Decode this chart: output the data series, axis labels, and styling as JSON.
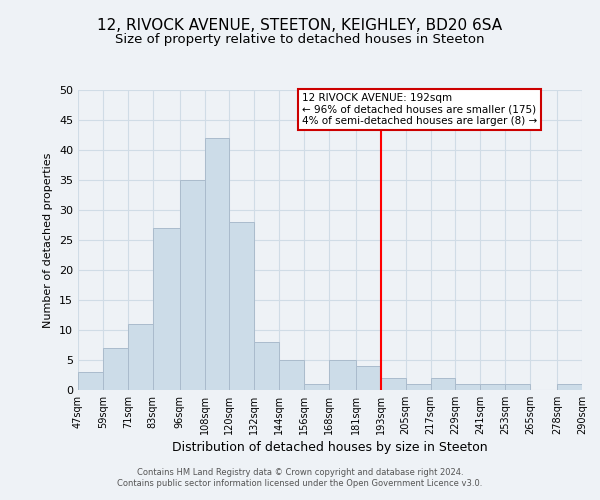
{
  "title": "12, RIVOCK AVENUE, STEETON, KEIGHLEY, BD20 6SA",
  "subtitle": "Size of property relative to detached houses in Steeton",
  "xlabel": "Distribution of detached houses by size in Steeton",
  "ylabel": "Number of detached properties",
  "bar_edges": [
    47,
    59,
    71,
    83,
    96,
    108,
    120,
    132,
    144,
    156,
    168,
    181,
    193,
    205,
    217,
    229,
    241,
    253,
    265,
    278,
    290
  ],
  "bar_heights": [
    3,
    7,
    11,
    27,
    35,
    42,
    28,
    8,
    5,
    1,
    5,
    4,
    2,
    1,
    2,
    1,
    1,
    1,
    0,
    1
  ],
  "tick_labels": [
    "47sqm",
    "59sqm",
    "71sqm",
    "83sqm",
    "96sqm",
    "108sqm",
    "120sqm",
    "132sqm",
    "144sqm",
    "156sqm",
    "168sqm",
    "181sqm",
    "193sqm",
    "205sqm",
    "217sqm",
    "229sqm",
    "241sqm",
    "253sqm",
    "265sqm",
    "278sqm",
    "290sqm"
  ],
  "bar_color": "#ccdce8",
  "bar_edgecolor": "#aabbcc",
  "grid_color": "#d0dce6",
  "red_line_x": 193,
  "ylim": [
    0,
    50
  ],
  "yticks": [
    0,
    5,
    10,
    15,
    20,
    25,
    30,
    35,
    40,
    45,
    50
  ],
  "legend_title": "12 RIVOCK AVENUE: 192sqm",
  "legend_line1": "← 96% of detached houses are smaller (175)",
  "legend_line2": "4% of semi-detached houses are larger (8) →",
  "legend_box_edgecolor": "#cc0000",
  "footer_line1": "Contains HM Land Registry data © Crown copyright and database right 2024.",
  "footer_line2": "Contains public sector information licensed under the Open Government Licence v3.0.",
  "background_color": "#eef2f6",
  "title_fontsize": 11,
  "subtitle_fontsize": 9.5
}
